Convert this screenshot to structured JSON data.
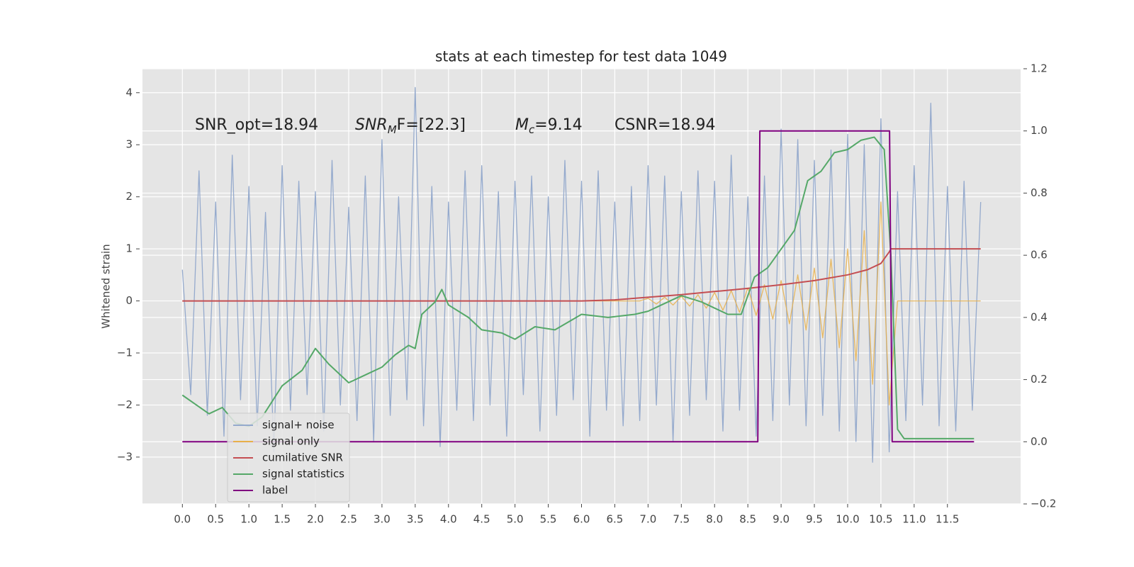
{
  "chart_data": {
    "type": "line",
    "title": "stats at each timestep for test data 1049",
    "ylabel": "Whitened strain",
    "xlim": [
      -0.6,
      12.6
    ],
    "ylim": [
      -3.9,
      4.46
    ],
    "y2lim": [
      -0.2,
      1.2
    ],
    "xticks": [
      {
        "value": 0,
        "label": "0.0"
      },
      {
        "value": 0.5,
        "label": "0.5"
      },
      {
        "value": 1,
        "label": "1.0"
      },
      {
        "value": 1.5,
        "label": "1.5"
      },
      {
        "value": 2,
        "label": "2.0"
      },
      {
        "value": 2.5,
        "label": "2.5"
      },
      {
        "value": 3,
        "label": "3.0"
      },
      {
        "value": 3.5,
        "label": "3.5"
      },
      {
        "value": 4,
        "label": "4.0"
      },
      {
        "value": 4.5,
        "label": "4.5"
      },
      {
        "value": 5,
        "label": "5.0"
      },
      {
        "value": 5.5,
        "label": "5.5"
      },
      {
        "value": 6,
        "label": "6.0"
      },
      {
        "value": 6.5,
        "label": "6.5"
      },
      {
        "value": 7,
        "label": "7.0"
      },
      {
        "value": 7.5,
        "label": "7.5"
      },
      {
        "value": 8,
        "label": "8.0"
      },
      {
        "value": 8.5,
        "label": "8.5"
      },
      {
        "value": 9,
        "label": "9.0"
      },
      {
        "value": 9.5,
        "label": "9.5"
      },
      {
        "value": 10,
        "label": "10.0"
      },
      {
        "value": 10.5,
        "label": "10.5"
      },
      {
        "value": 11,
        "label": "11.0"
      },
      {
        "value": 11.5,
        "label": "11.5"
      }
    ],
    "yticks": [
      {
        "value": -3,
        "label": "−3"
      },
      {
        "value": -2,
        "label": "−2"
      },
      {
        "value": -1,
        "label": "−1"
      },
      0,
      1,
      2,
      3,
      4
    ],
    "y2ticks": [
      {
        "value": -0.2,
        "label": "−0.2"
      },
      {
        "value": 0,
        "label": "0.0"
      },
      {
        "value": 0.2,
        "label": "0.2"
      },
      {
        "value": 0.4,
        "label": "0.4"
      },
      {
        "value": 0.6,
        "label": "0.6"
      },
      {
        "value": 0.8,
        "label": "0.8"
      },
      {
        "value": 1,
        "label": "1.0"
      },
      {
        "value": 1.2,
        "label": "1.2"
      }
    ],
    "grid": true,
    "legend": "lower left",
    "annotations": [
      {
        "text": "SNR_opt=18.94"
      },
      {
        "base": "SNR",
        "sub": "M",
        "rest": "F=[22.3]"
      },
      {
        "base": "M",
        "sub": "c",
        "rest": "=9.14"
      },
      {
        "text": "CSNR=18.94"
      }
    ],
    "x": [
      0,
      0.125,
      0.25,
      0.375,
      0.5,
      0.625,
      0.75,
      0.875,
      1,
      1.125,
      1.25,
      1.375,
      1.5,
      1.625,
      1.75,
      1.875,
      2,
      2.125,
      2.25,
      2.375,
      2.5,
      2.625,
      2.75,
      2.875,
      3,
      3.125,
      3.25,
      3.375,
      3.5,
      3.625,
      3.75,
      3.875,
      4,
      4.125,
      4.25,
      4.375,
      4.5,
      4.625,
      4.75,
      4.875,
      5,
      5.125,
      5.25,
      5.375,
      5.5,
      5.625,
      5.75,
      5.875,
      6,
      6.125,
      6.25,
      6.375,
      6.5,
      6.625,
      6.75,
      6.875,
      7,
      7.125,
      7.25,
      7.375,
      7.5,
      7.625,
      7.75,
      7.875,
      8,
      8.125,
      8.25,
      8.375,
      8.5,
      8.625,
      8.75,
      8.875,
      9,
      9.125,
      9.25,
      9.375,
      9.5,
      9.625,
      9.75,
      9.875,
      10,
      10.125,
      10.25,
      10.375,
      10.5,
      10.625,
      10.75,
      10.875,
      11,
      11.125,
      11.25,
      11.375,
      11.5,
      11.625,
      11.75,
      11.875,
      12
    ],
    "series": [
      {
        "name": "signal+ noise",
        "color": "#95aacd",
        "axis": "y",
        "values": [
          0.6,
          -1.8,
          2.5,
          -2.2,
          1.9,
          -2.6,
          2.8,
          -1.9,
          2.2,
          -2.4,
          1.7,
          -2.9,
          2.6,
          -2.1,
          2.3,
          -1.8,
          2.1,
          -2.5,
          2.7,
          -2.0,
          1.8,
          -2.3,
          2.4,
          -2.7,
          3.1,
          -2.2,
          2.0,
          -1.9,
          4.1,
          -2.4,
          2.2,
          -2.8,
          1.9,
          -2.1,
          2.5,
          -2.3,
          2.6,
          -2.0,
          2.1,
          -2.6,
          2.3,
          -1.8,
          2.4,
          -2.5,
          2.0,
          -2.2,
          2.7,
          -1.9,
          2.3,
          -2.6,
          2.5,
          -2.1,
          1.9,
          -2.4,
          2.2,
          -2.3,
          2.6,
          -2.0,
          2.4,
          -2.7,
          2.1,
          -2.2,
          2.5,
          -1.9,
          2.3,
          -2.5,
          2.8,
          -2.1,
          2.0,
          -2.6,
          2.4,
          -2.3,
          3.3,
          -2.0,
          3.1,
          -2.4,
          2.7,
          -2.2,
          2.9,
          -2.5,
          3.2,
          -2.7,
          3.0,
          -3.1,
          3.5,
          -2.9,
          2.1,
          -2.3,
          2.6,
          -2.0,
          3.8,
          -2.4,
          2.2,
          -2.5,
          2.3,
          -2.1,
          1.9
        ]
      },
      {
        "name": "signal only",
        "color": "#e8b04a",
        "axis": "y",
        "values": [
          0,
          0,
          0,
          0,
          0,
          0,
          0,
          0,
          0,
          0,
          0,
          0,
          0,
          0,
          0,
          0,
          0,
          0,
          0,
          0,
          0,
          0,
          0,
          0,
          0,
          0,
          0,
          0,
          0,
          0,
          0,
          0,
          0,
          0,
          0,
          0,
          0,
          0,
          0,
          0,
          0,
          0,
          0,
          0,
          0,
          0,
          0,
          0,
          0,
          0,
          0,
          0,
          0,
          0,
          0,
          0,
          0.05,
          -0.06,
          0.07,
          -0.08,
          0.09,
          -0.1,
          0.12,
          -0.14,
          0.16,
          -0.18,
          0.2,
          -0.22,
          0.25,
          -0.28,
          0.31,
          -0.35,
          0.39,
          -0.44,
          0.5,
          -0.56,
          0.63,
          -0.71,
          0.8,
          -0.9,
          1.0,
          -1.15,
          1.35,
          -1.6,
          1.9,
          -2.0,
          0,
          0,
          0,
          0,
          0,
          0,
          0,
          0,
          0,
          0,
          0
        ]
      },
      {
        "name": "cumilative SNR",
        "color": "#c44e52",
        "axis": "y",
        "x": [
          0,
          6,
          6.5,
          7,
          7.5,
          8,
          8.5,
          9,
          9.5,
          10,
          10.3,
          10.5,
          10.63,
          10.65,
          12
        ],
        "values": [
          0,
          0,
          0.02,
          0.07,
          0.12,
          0.18,
          0.24,
          0.31,
          0.39,
          0.5,
          0.6,
          0.72,
          0.95,
          1.0,
          1.0
        ]
      },
      {
        "name": "signal statistics",
        "color": "#55a868",
        "axis": "y2",
        "x": [
          0,
          0.2,
          0.4,
          0.6,
          0.8,
          1.0,
          1.2,
          1.5,
          1.8,
          2.0,
          2.2,
          2.5,
          2.8,
          3.0,
          3.2,
          3.4,
          3.5,
          3.6,
          3.8,
          3.9,
          4.0,
          4.3,
          4.5,
          4.8,
          5.0,
          5.3,
          5.6,
          6.0,
          6.4,
          6.8,
          7.0,
          7.2,
          7.5,
          7.8,
          8.0,
          8.2,
          8.4,
          8.6,
          8.8,
          9.0,
          9.2,
          9.4,
          9.6,
          9.8,
          10.0,
          10.2,
          10.4,
          10.55,
          10.65,
          10.75,
          10.85,
          11.0,
          11.5,
          11.9
        ],
        "values": [
          0.15,
          0.12,
          0.09,
          0.11,
          0.06,
          0.05,
          0.08,
          0.18,
          0.23,
          0.3,
          0.25,
          0.19,
          0.22,
          0.24,
          0.28,
          0.31,
          0.3,
          0.41,
          0.45,
          0.49,
          0.44,
          0.4,
          0.36,
          0.35,
          0.33,
          0.37,
          0.36,
          0.41,
          0.4,
          0.41,
          0.42,
          0.44,
          0.47,
          0.45,
          0.43,
          0.41,
          0.41,
          0.53,
          0.56,
          0.62,
          0.68,
          0.84,
          0.87,
          0.93,
          0.94,
          0.97,
          0.98,
          0.94,
          0.6,
          0.04,
          0.01,
          0.01,
          0.01,
          0.01
        ]
      },
      {
        "name": "label",
        "color": "#800080",
        "axis": "y2",
        "x": [
          0,
          8.65,
          8.68,
          10.63,
          10.67,
          11.9
        ],
        "values": [
          0,
          0,
          1,
          1,
          0,
          0
        ]
      }
    ]
  }
}
